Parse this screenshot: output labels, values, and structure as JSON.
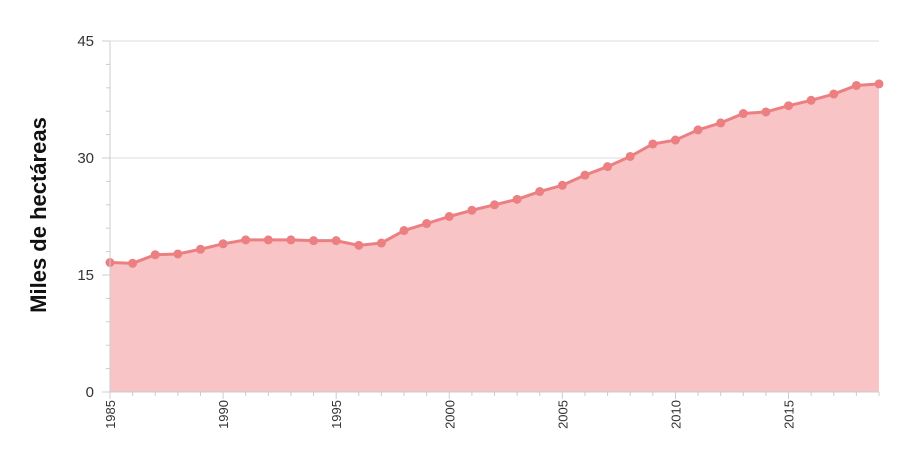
{
  "chart_data": {
    "type": "area",
    "title": "",
    "xlabel": "",
    "ylabel": "Miles de hectáreas",
    "xlim": [
      1985,
      2019
    ],
    "ylim": [
      0,
      45
    ],
    "y_ticks": [
      "0",
      "15",
      "30",
      "45"
    ],
    "x_ticks": [
      "1985",
      "1990",
      "1995",
      "2000",
      "2005",
      "2010",
      "2015"
    ],
    "grid": true,
    "legend": "none",
    "colors": {
      "line": "#ec7f82",
      "fill": "#f8c4c6",
      "grid": "#dddddd",
      "axis": "#cccccc"
    },
    "x": [
      1985,
      1986,
      1987,
      1988,
      1989,
      1990,
      1991,
      1992,
      1993,
      1994,
      1995,
      1996,
      1997,
      1998,
      1999,
      2000,
      2001,
      2002,
      2003,
      2004,
      2005,
      2006,
      2007,
      2008,
      2009,
      2010,
      2011,
      2012,
      2013,
      2014,
      2015,
      2016,
      2017,
      2018,
      2019
    ],
    "values": [
      16.6,
      16.5,
      17.6,
      17.7,
      18.3,
      19.0,
      19.5,
      19.5,
      19.5,
      19.4,
      19.4,
      18.8,
      19.1,
      20.7,
      21.6,
      22.5,
      23.3,
      24.0,
      24.7,
      25.7,
      26.5,
      27.8,
      28.9,
      30.2,
      31.8,
      32.3,
      33.6,
      34.5,
      35.7,
      35.9,
      36.7,
      37.4,
      38.2,
      39.3,
      39.5
    ]
  }
}
